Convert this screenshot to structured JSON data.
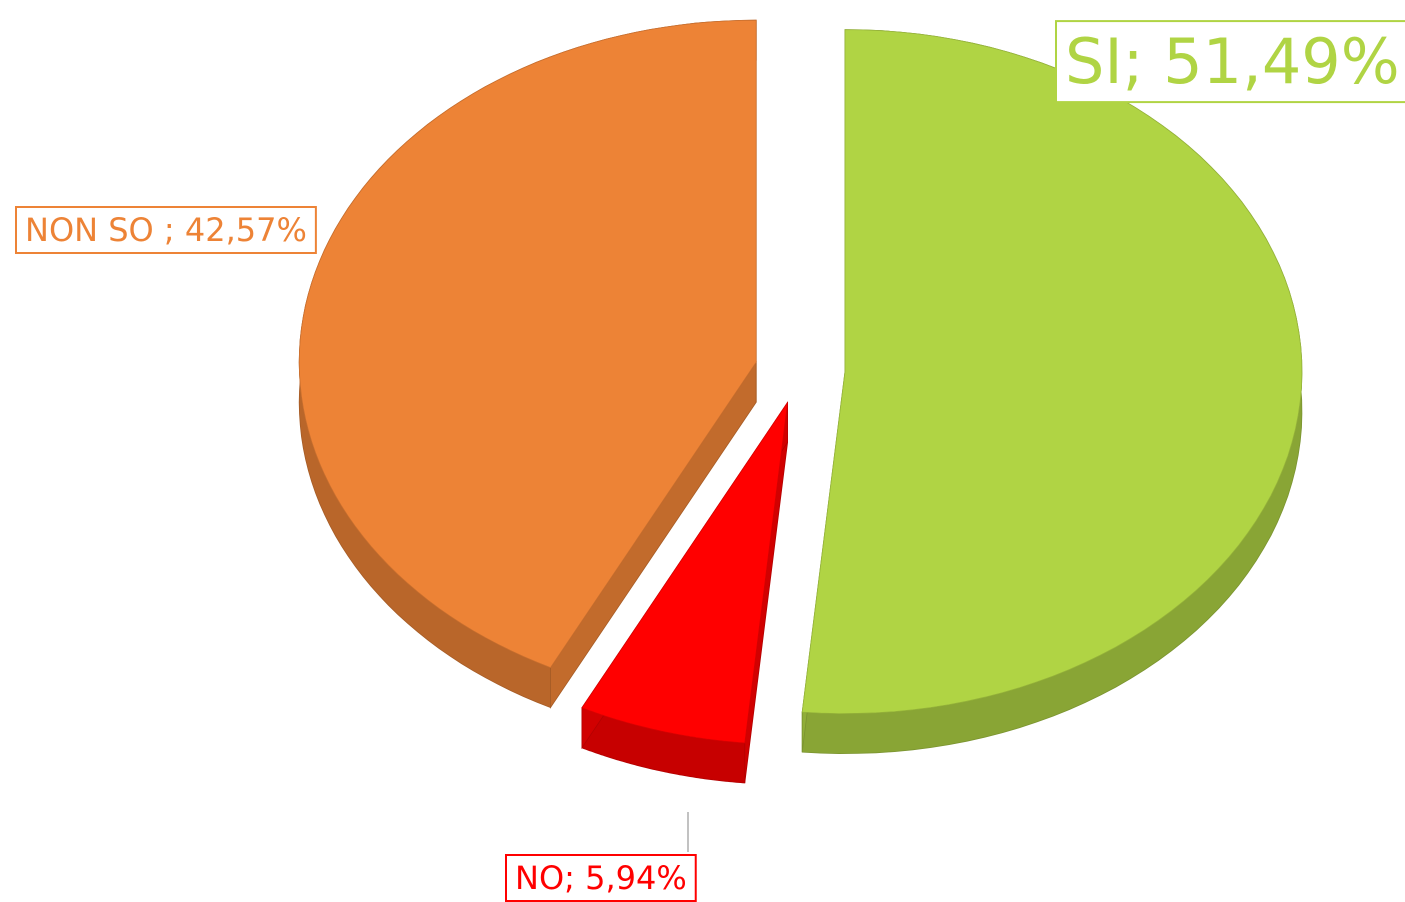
{
  "chart_data": {
    "type": "pie",
    "categories": [
      "SI",
      "NO",
      "NON SO"
    ],
    "values": [
      51.49,
      5.94,
      42.57
    ],
    "value_labels": [
      "SI; 51,49%",
      "NO; 5,94%",
      "NON SO ; 42,57%"
    ],
    "colors": [
      "#b0d444",
      "#ff0000",
      "#ed8336"
    ]
  }
}
